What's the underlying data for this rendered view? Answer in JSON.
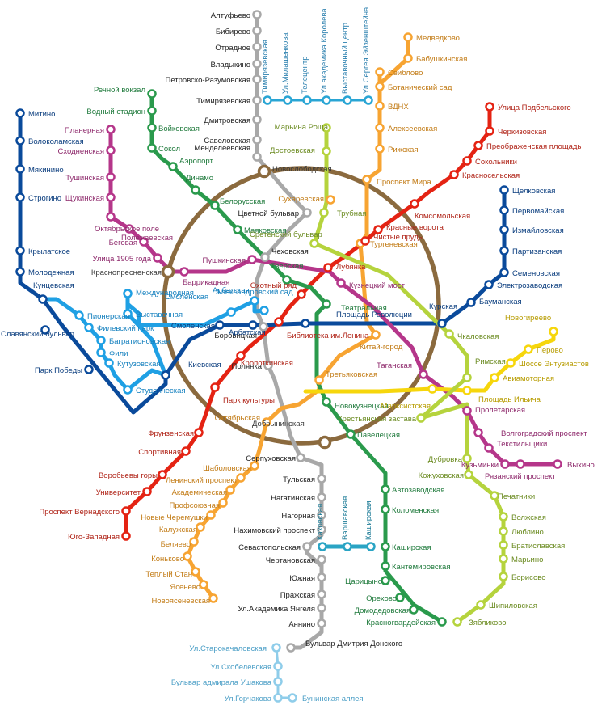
{
  "lines": [
    {
      "id": "l1",
      "name": "Сокольническая",
      "color": "#e42313"
    },
    {
      "id": "l2",
      "name": "Замоскворецкая",
      "color": "#2a9a4c"
    },
    {
      "id": "l3",
      "name": "Арбатско-Покровская",
      "color": "#0a4a9b"
    },
    {
      "id": "l4",
      "name": "Филёвская",
      "color": "#1fa0e4"
    },
    {
      "id": "l5",
      "name": "Кольцевая",
      "color": "#8b6a3e"
    },
    {
      "id": "l6",
      "name": "Калужско-Рижская",
      "color": "#f7a432"
    },
    {
      "id": "l7",
      "name": "Таганско-Краснопресненская",
      "color": "#b5368a"
    },
    {
      "id": "l8",
      "name": "Калининская",
      "color": "#f6d60c"
    },
    {
      "id": "l9",
      "name": "Серпуховско-Тимирязевская",
      "color": "#a8a8a8"
    },
    {
      "id": "l10",
      "name": "Люблинская",
      "color": "#b5d33d"
    },
    {
      "id": "l11",
      "name": "Каховская",
      "color": "#2aa4c4"
    },
    {
      "id": "l12",
      "name": "Бутовская",
      "color": "#8fcdea"
    },
    {
      "id": "l13",
      "name": "Монорельс",
      "color": "#29a5d4"
    }
  ],
  "stations": [
    {
      "id": "s1",
      "label": "Алтуфьево",
      "line": "l9"
    },
    {
      "id": "s2",
      "label": "Бибирево",
      "line": "l9"
    },
    {
      "id": "s3",
      "label": "Отрадное",
      "line": "l9"
    },
    {
      "id": "s4",
      "label": "Владыкино",
      "line": "l9"
    },
    {
      "id": "s5",
      "label": "Петровско-Разумовская",
      "line": "l9"
    },
    {
      "id": "s6",
      "label": "Тимирязевская",
      "line": "l9"
    },
    {
      "id": "s7",
      "label": "Дмитровская",
      "line": "l9"
    },
    {
      "id": "s8",
      "label": "Савеловская",
      "line": "l9"
    },
    {
      "id": "s9",
      "label": "Менделеевская",
      "line": "l9"
    },
    {
      "id": "s10",
      "label": "Цветной бульвар",
      "line": "l9"
    },
    {
      "id": "s11",
      "label": "Чеховская",
      "line": "l9"
    },
    {
      "id": "s12",
      "label": "Боровицкая",
      "line": "l9"
    },
    {
      "id": "s13",
      "label": "Полянка",
      "line": "l9"
    },
    {
      "id": "s14",
      "label": "Серпуховская",
      "line": "l9"
    },
    {
      "id": "s15",
      "label": "Тульская",
      "line": "l9"
    },
    {
      "id": "s16",
      "label": "Нагатинская",
      "line": "l9"
    },
    {
      "id": "s17",
      "label": "Нагорная",
      "line": "l9"
    },
    {
      "id": "s18",
      "label": "Нахимовский проспект",
      "line": "l9"
    },
    {
      "id": "s19",
      "label": "Севастопольская",
      "line": "l9"
    },
    {
      "id": "s20",
      "label": "Чертановская",
      "line": "l9"
    },
    {
      "id": "s21",
      "label": "Южная",
      "line": "l9"
    },
    {
      "id": "s22",
      "label": "Пражская",
      "line": "l9"
    },
    {
      "id": "s23",
      "label": "Ул.Академика Янгеля",
      "line": "l9"
    },
    {
      "id": "s24",
      "label": "Аннино",
      "line": "l9"
    },
    {
      "id": "s25",
      "label": "Бульвар Дмитрия Донского",
      "line": "l9"
    },
    {
      "id": "m1",
      "label": "Тимирязевская",
      "line": "l13"
    },
    {
      "id": "m2",
      "label": "Ул.Милашенкова",
      "line": "l13"
    },
    {
      "id": "m3",
      "label": "Телецентр",
      "line": "l13"
    },
    {
      "id": "m4",
      "label": "Ул.академика Королева",
      "line": "l13"
    },
    {
      "id": "m5",
      "label": "Выставочный центр",
      "line": "l13"
    },
    {
      "id": "m6",
      "label": "Ул.Сергея Эйзенштейна",
      "line": "l13"
    },
    {
      "id": "k1",
      "label": "Медведково",
      "line": "l6"
    },
    {
      "id": "k2",
      "label": "Бабушкинская",
      "line": "l6"
    },
    {
      "id": "k3",
      "label": "Свиблово",
      "line": "l6"
    },
    {
      "id": "k4",
      "label": "Ботанический сад",
      "line": "l6"
    },
    {
      "id": "k5",
      "label": "ВДНХ",
      "line": "l6"
    },
    {
      "id": "k6",
      "label": "Алексеевская",
      "line": "l6"
    },
    {
      "id": "k7",
      "label": "Рижская",
      "line": "l6"
    },
    {
      "id": "k8",
      "label": "Проспект Мира",
      "line": "l6"
    },
    {
      "id": "k9",
      "label": "Сухаревская",
      "line": "l6"
    },
    {
      "id": "k10",
      "label": "Тургеневская",
      "line": "l6"
    },
    {
      "id": "k11",
      "label": "Китай-город",
      "line": "l6"
    },
    {
      "id": "k12",
      "label": "Третьяковская",
      "line": "l6"
    },
    {
      "id": "k13",
      "label": "Октябрьская",
      "line": "l6"
    },
    {
      "id": "k14",
      "label": "Шаболовская",
      "line": "l6"
    },
    {
      "id": "k15",
      "label": "Ленинский проспект",
      "line": "l6"
    },
    {
      "id": "k16",
      "label": "Академическая",
      "line": "l6"
    },
    {
      "id": "k17",
      "label": "Профсоюзная",
      "line": "l6"
    },
    {
      "id": "k18",
      "label": "Новые Черемушки",
      "line": "l6"
    },
    {
      "id": "k19",
      "label": "Калужская",
      "line": "l6"
    },
    {
      "id": "k20",
      "label": "Беляево",
      "line": "l6"
    },
    {
      "id": "k21",
      "label": "Коньково",
      "line": "l6"
    },
    {
      "id": "k22",
      "label": "Теплый Стан",
      "line": "l6"
    },
    {
      "id": "k23",
      "label": "Ясенево",
      "line": "l6"
    },
    {
      "id": "k24",
      "label": "Новоясеневская",
      "line": "l6"
    },
    {
      "id": "r1",
      "label": "Улица Подбельского",
      "line": "l1"
    },
    {
      "id": "r2",
      "label": "Черкизовская",
      "line": "l1"
    },
    {
      "id": "r3",
      "label": "Преображенская площадь",
      "line": "l1"
    },
    {
      "id": "r4",
      "label": "Сокольники",
      "line": "l1"
    },
    {
      "id": "r5",
      "label": "Красносельская",
      "line": "l1"
    },
    {
      "id": "r6",
      "label": "Комсомольская",
      "line": "l1"
    },
    {
      "id": "r7",
      "label": "Красные ворота",
      "line": "l1"
    },
    {
      "id": "r8",
      "label": "Чистые пруды",
      "line": "l1"
    },
    {
      "id": "r9",
      "label": "Лубянка",
      "line": "l1"
    },
    {
      "id": "r10",
      "label": "Охотный ряд",
      "line": "l1"
    },
    {
      "id": "r11",
      "label": "Библиотека им.Ленина",
      "line": "l1"
    },
    {
      "id": "r12",
      "label": "Кропоткинская",
      "line": "l1"
    },
    {
      "id": "r13",
      "label": "Парк культуры",
      "line": "l1"
    },
    {
      "id": "r14",
      "label": "Фрунзенская",
      "line": "l1"
    },
    {
      "id": "r15",
      "label": "Спортивная",
      "line": "l1"
    },
    {
      "id": "r16",
      "label": "Воробьевы горы",
      "line": "l1"
    },
    {
      "id": "r17",
      "label": "Университет",
      "line": "l1"
    },
    {
      "id": "r18",
      "label": "Проспект Вернадского",
      "line": "l1"
    },
    {
      "id": "r19",
      "label": "Юго-Западная",
      "line": "l1"
    },
    {
      "id": "g1",
      "label": "Речной вокзал",
      "line": "l2"
    },
    {
      "id": "g2",
      "label": "Водный стадион",
      "line": "l2"
    },
    {
      "id": "g3",
      "label": "Войковская",
      "line": "l2"
    },
    {
      "id": "g4",
      "label": "Сокол",
      "line": "l2"
    },
    {
      "id": "g5",
      "label": "Аэропорт",
      "line": "l2"
    },
    {
      "id": "g6",
      "label": "Динамо",
      "line": "l2"
    },
    {
      "id": "g7",
      "label": "Белорусская",
      "line": "l2"
    },
    {
      "id": "g8",
      "label": "Маяковская",
      "line": "l2"
    },
    {
      "id": "g9",
      "label": "Тверская",
      "line": "l2"
    },
    {
      "id": "g10",
      "label": "Театральная",
      "line": "l2"
    },
    {
      "id": "g11",
      "label": "Новокузнецкая",
      "line": "l2"
    },
    {
      "id": "g12",
      "label": "Павелецкая",
      "line": "l2"
    },
    {
      "id": "g13",
      "label": "Автозаводская",
      "line": "l2"
    },
    {
      "id": "g14",
      "label": "Коломенская",
      "line": "l2"
    },
    {
      "id": "g15",
      "label": "Каширская",
      "line": "l2"
    },
    {
      "id": "g16",
      "label": "Кантемировская",
      "line": "l2"
    },
    {
      "id": "g17",
      "label": "Царицыно",
      "line": "l2"
    },
    {
      "id": "g18",
      "label": "Орехово",
      "line": "l2"
    },
    {
      "id": "g19",
      "label": "Домодедовская",
      "line": "l2"
    },
    {
      "id": "g20",
      "label": "Красногвардейская",
      "line": "l2"
    },
    {
      "id": "b1",
      "label": "Митино",
      "line": "l3"
    },
    {
      "id": "b2",
      "label": "Волоколамская",
      "line": "l3"
    },
    {
      "id": "b3",
      "label": "Мякинино",
      "line": "l3"
    },
    {
      "id": "b4",
      "label": "Строгино",
      "line": "l3"
    },
    {
      "id": "b5",
      "label": "Крылатское",
      "line": "l3"
    },
    {
      "id": "b6",
      "label": "Молодежная",
      "line": "l3"
    },
    {
      "id": "b7",
      "label": "Кунцевская",
      "line": "l3"
    },
    {
      "id": "b8",
      "label": "Славянский бульвар",
      "line": "l3"
    },
    {
      "id": "b9",
      "label": "Парк Победы",
      "line": "l3"
    },
    {
      "id": "b10",
      "label": "Киевская",
      "line": "l3"
    },
    {
      "id": "b11",
      "label": "Смоленская",
      "line": "l3"
    },
    {
      "id": "b12",
      "label": "Арбатская",
      "line": "l3"
    },
    {
      "id": "b13",
      "label": "Площадь Революции",
      "line": "l3"
    },
    {
      "id": "b14",
      "label": "Курская",
      "line": "l3"
    },
    {
      "id": "b15",
      "label": "Бауманская",
      "line": "l3"
    },
    {
      "id": "b16",
      "label": "Электрозаводская",
      "line": "l3"
    },
    {
      "id": "b17",
      "label": "Семеновская",
      "line": "l3"
    },
    {
      "id": "b18",
      "label": "Партизанская",
      "line": "l3"
    },
    {
      "id": "b19",
      "label": "Измайловская",
      "line": "l3"
    },
    {
      "id": "b20",
      "label": "Первомайская",
      "line": "l3"
    },
    {
      "id": "b21",
      "label": "Щелковская",
      "line": "l3"
    },
    {
      "id": "c1",
      "label": "Пионерская",
      "line": "l4"
    },
    {
      "id": "c2",
      "label": "Филевский парк",
      "line": "l4"
    },
    {
      "id": "c3",
      "label": "Багратионовская",
      "line": "l4"
    },
    {
      "id": "c4",
      "label": "Фили",
      "line": "l4"
    },
    {
      "id": "c5",
      "label": "Кутузовская",
      "line": "l4"
    },
    {
      "id": "c6",
      "label": "Студенческая",
      "line": "l4"
    },
    {
      "id": "c7",
      "label": "Международная",
      "line": "l4"
    },
    {
      "id": "c8",
      "label": "Выставочная",
      "line": "l4"
    },
    {
      "id": "c9",
      "label": "Смоленская",
      "line": "l4"
    },
    {
      "id": "c10",
      "label": "Арбатская",
      "line": "l4"
    },
    {
      "id": "c11",
      "label": "Александровский сад",
      "line": "l4"
    },
    {
      "id": "p1",
      "label": "Планерная",
      "line": "l7"
    },
    {
      "id": "p2",
      "label": "Сходненская",
      "line": "l7"
    },
    {
      "id": "p3",
      "label": "Тушинская",
      "line": "l7"
    },
    {
      "id": "p4",
      "label": "Щукинская",
      "line": "l7"
    },
    {
      "id": "p5",
      "label": "Октябрьское поле",
      "line": "l7"
    },
    {
      "id": "p6",
      "label": "Полежаевская",
      "line": "l7"
    },
    {
      "id": "p7",
      "label": "Беговая",
      "line": "l7"
    },
    {
      "id": "p8",
      "label": "Улица 1905 года",
      "line": "l7"
    },
    {
      "id": "p9",
      "label": "Баррикадная",
      "line": "l7"
    },
    {
      "id": "p10",
      "label": "Пушкинская",
      "line": "l7"
    },
    {
      "id": "p11",
      "label": "Кузнецкий мост",
      "line": "l7"
    },
    {
      "id": "p12",
      "label": "Таганская",
      "line": "l7"
    },
    {
      "id": "p13",
      "label": "Пролетарская",
      "line": "l7"
    },
    {
      "id": "p14",
      "label": "Волгоградский проспект",
      "line": "l7"
    },
    {
      "id": "p15",
      "label": "Текстильщики",
      "line": "l7"
    },
    {
      "id": "p16",
      "label": "Кузьминки",
      "line": "l7"
    },
    {
      "id": "p17",
      "label": "Рязанский проспект",
      "line": "l7"
    },
    {
      "id": "p18",
      "label": "Выхино",
      "line": "l7"
    },
    {
      "id": "y1",
      "label": "Новогиреево",
      "line": "l8"
    },
    {
      "id": "y2",
      "label": "Перово",
      "line": "l8"
    },
    {
      "id": "y3",
      "label": "Шоссе Энтузиастов",
      "line": "l8"
    },
    {
      "id": "y4",
      "label": "Авиамоторная",
      "line": "l8"
    },
    {
      "id": "y5",
      "label": "Площадь Ильича",
      "line": "l8"
    },
    {
      "id": "y6",
      "label": "Марксистская",
      "line": "l8"
    },
    {
      "id": "lb1",
      "label": "Марьина Роща",
      "line": "l10"
    },
    {
      "id": "lb2",
      "label": "Достоевская",
      "line": "l10"
    },
    {
      "id": "lb3",
      "label": "Трубная",
      "line": "l10"
    },
    {
      "id": "lb4",
      "label": "Сретенский бульвар",
      "line": "l10"
    },
    {
      "id": "lb5",
      "label": "Чкаловская",
      "line": "l10"
    },
    {
      "id": "lb6",
      "label": "Римская",
      "line": "l10"
    },
    {
      "id": "lb7",
      "label": "Крестьянская застава",
      "line": "l10"
    },
    {
      "id": "lb8",
      "label": "Дубровка",
      "line": "l10"
    },
    {
      "id": "lb9",
      "label": "Кожуховская",
      "line": "l10"
    },
    {
      "id": "lb10",
      "label": "Печатники",
      "line": "l10"
    },
    {
      "id": "lb11",
      "label": "Волжская",
      "line": "l10"
    },
    {
      "id": "lb12",
      "label": "Люблино",
      "line": "l10"
    },
    {
      "id": "lb13",
      "label": "Братиславская",
      "line": "l10"
    },
    {
      "id": "lb14",
      "label": "Марьино",
      "line": "l10"
    },
    {
      "id": "lb15",
      "label": "Борисово",
      "line": "l10"
    },
    {
      "id": "lb16",
      "label": "Шипиловская",
      "line": "l10"
    },
    {
      "id": "lb17",
      "label": "Зябликово",
      "line": "l10"
    },
    {
      "id": "o1",
      "label": "Новослободская",
      "line": "l5"
    },
    {
      "id": "o2",
      "label": "Краснопресненская",
      "line": "l5"
    },
    {
      "id": "o3",
      "label": "Добрынинская",
      "line": "l5"
    },
    {
      "id": "kh1",
      "label": "Каховская",
      "line": "l11"
    },
    {
      "id": "kh2",
      "label": "Варшавская",
      "line": "l11"
    },
    {
      "id": "kh3",
      "label": "Каширская",
      "line": "l11"
    },
    {
      "id": "bt1",
      "label": "Ул.Старокачаловская",
      "line": "l12"
    },
    {
      "id": "bt2",
      "label": "Ул.Скобелевская",
      "line": "l12"
    },
    {
      "id": "bt3",
      "label": "Бульвар адмирала Ушакова",
      "line": "l12"
    },
    {
      "id": "bt4",
      "label": "Ул.Горчакова",
      "line": "l12"
    },
    {
      "id": "bt5",
      "label": "Бунинская аллея",
      "line": "l12"
    }
  ]
}
